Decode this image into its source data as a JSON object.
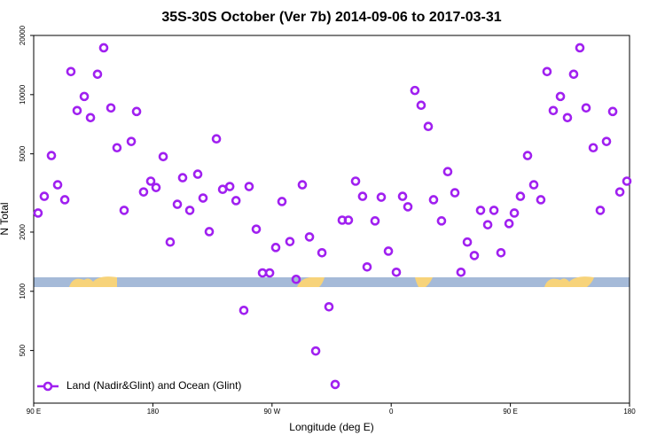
{
  "chart_data": {
    "type": "scatter",
    "title": "35S-30S October (Ver 7b)   2014-09-06 to 2017-03-31",
    "x_label": "Longitude (deg E)",
    "y_label": "N Total",
    "log_y": true,
    "xlim": [
      90,
      540
    ],
    "ylim": [
      270,
      20000
    ],
    "xticks": [
      {
        "value": 90,
        "label": "90 E"
      },
      180,
      {
        "value": 270,
        "label": "90 W"
      },
      {
        "value": 360,
        "label": "0"
      },
      {
        "value": 450,
        "label": "90 E"
      },
      {
        "value": 540,
        "label": "180"
      }
    ],
    "yticks": [
      500,
      1000,
      2000,
      5000,
      10000,
      20000
    ],
    "legend_position": "bottom-left",
    "series": [
      {
        "name": "Land (Nadir&Glint) and Ocean (Glint)",
        "color": "#a020f0",
        "x": [
          93.3,
          98.0,
          103.4,
          108.1,
          113.5,
          118.1,
          122.8,
          128.2,
          132.9,
          138.2,
          142.9,
          148.3,
          152.9,
          158.3,
          163.7,
          167.7,
          173.0,
          178.4,
          182.4,
          187.8,
          193.1,
          198.5,
          202.5,
          207.9,
          213.9,
          217.9,
          222.6,
          228.0,
          232.7,
          238.1,
          242.8,
          248.7,
          252.7,
          258.1,
          262.8,
          268.2,
          272.8,
          277.5,
          283.5,
          288.2,
          292.9,
          298.3,
          303.0,
          307.7,
          313.0,
          317.7,
          323.0,
          327.7,
          333.1,
          338.4,
          341.8,
          347.8,
          352.5,
          357.9,
          363.9,
          368.6,
          372.6,
          377.9,
          382.6,
          388.0,
          392.0,
          398.0,
          402.7,
          408.1,
          412.7,
          417.5,
          422.8,
          427.5,
          432.9,
          437.6,
          442.9,
          449.0,
          453.0,
          457.6,
          463.0,
          467.7,
          473.0,
          477.7,
          482.4,
          487.8,
          493.1,
          497.8,
          502.5,
          507.2,
          512.6,
          517.9,
          522.6,
          527.3,
          532.7,
          538.0
        ],
        "values": [
          2500,
          3040,
          4900,
          3480,
          2920,
          13100,
          8300,
          9790,
          7640,
          12700,
          17300,
          8560,
          5370,
          2580,
          5780,
          8210,
          3200,
          3630,
          3370,
          4840,
          1780,
          2770,
          3780,
          2580,
          3940,
          2980,
          2010,
          5960,
          3300,
          3410,
          2890,
          800,
          3410,
          2070,
          1240,
          1240,
          1670,
          2860,
          1790,
          1150,
          3480,
          1890,
          497,
          1570,
          834,
          336,
          2300,
          2300,
          3630,
          3040,
          1330,
          2280,
          3010,
          1600,
          1250,
          3040,
          2690,
          10500,
          8830,
          6890,
          2920,
          2280,
          4060,
          3170,
          1250,
          1780,
          1520,
          2580,
          2180,
          2580,
          1570,
          2210,
          2500,
          3040,
          4900,
          3480,
          2920,
          13100,
          8300,
          9790,
          7640,
          12700,
          17300,
          8560,
          5370,
          2580,
          5780,
          8210,
          3200,
          3630
        ]
      }
    ]
  }
}
